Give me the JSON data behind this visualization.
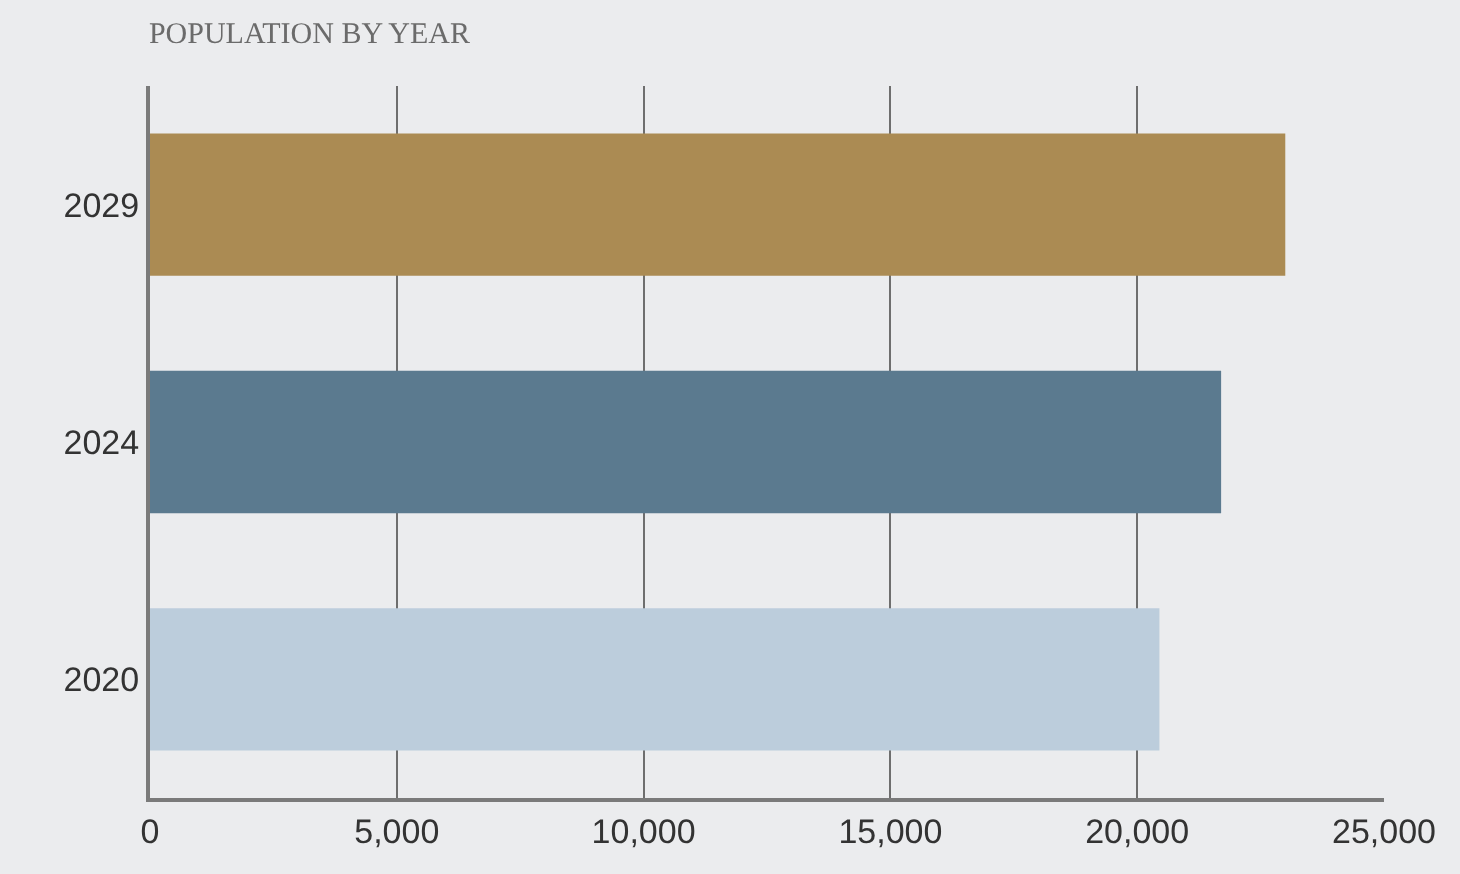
{
  "chart_data": {
    "type": "bar",
    "orientation": "horizontal",
    "title": "POPULATION BY YEAR",
    "categories": [
      "2029",
      "2024",
      "2020"
    ],
    "values": [
      23000,
      21700,
      20450
    ],
    "colors": [
      "#ab8b53",
      "#5b7a8f",
      "#bccddc"
    ],
    "xlim": [
      0,
      25000
    ],
    "xticks": [
      0,
      {
        "value": 5000,
        "label": "5,000"
      },
      {
        "value": 10000,
        "label": "10,000"
      },
      {
        "value": 15000,
        "label": "15,000"
      },
      {
        "value": 20000,
        "label": "20,000"
      },
      {
        "value": 25000,
        "label": "25,000"
      }
    ],
    "grid": "x",
    "legend": false
  }
}
